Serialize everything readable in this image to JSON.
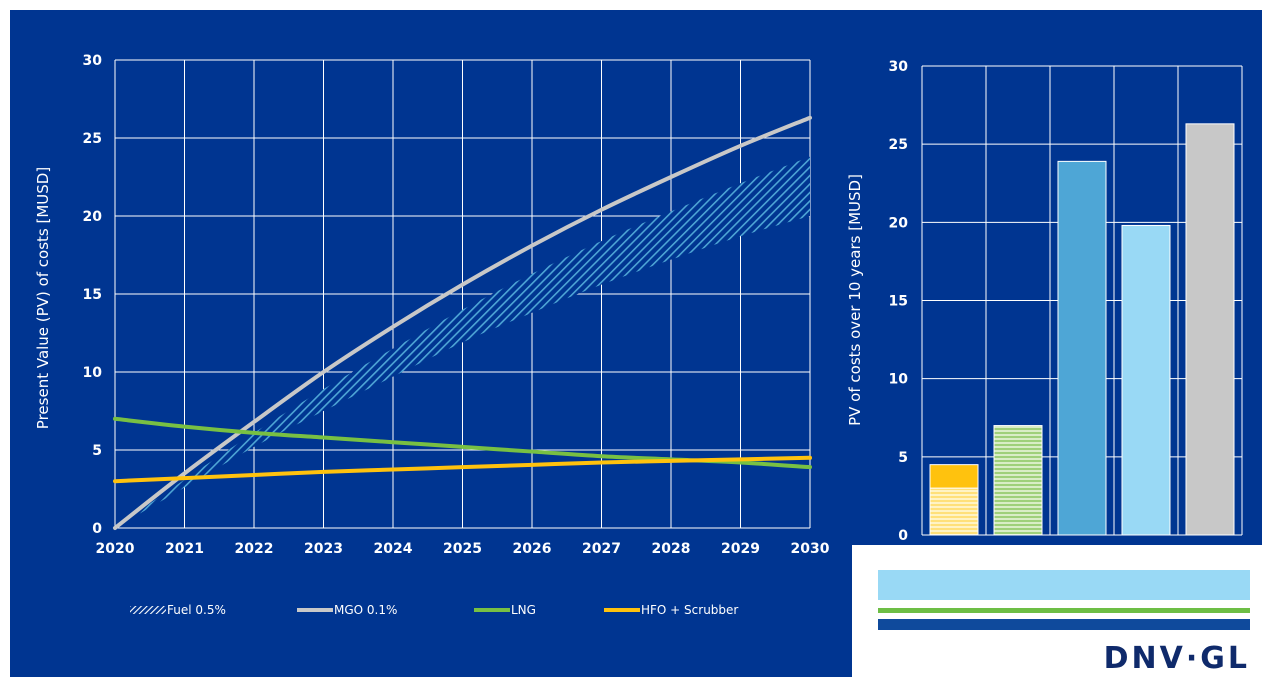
{
  "colors": {
    "background": "#003591",
    "grid": "#ffffff",
    "fuel": "#4ea6d6",
    "mgo": "#c8c8c8",
    "lng": "#78c043",
    "hfo": "#ffc20e",
    "logo_light_blue": "#99d9f5",
    "logo_green": "#6dbe45",
    "logo_dark_blue": "#0f4a9c",
    "logo_text": "#0f2a6b"
  },
  "chart_data": [
    {
      "type": "line",
      "title": "",
      "xlabel": "",
      "ylabel": "Present Value (PV) of costs [MUSD]",
      "xlim": [
        2020,
        2030
      ],
      "ylim": [
        0,
        30
      ],
      "x_ticks": [
        2020,
        2021,
        2022,
        2023,
        2024,
        2025,
        2026,
        2027,
        2028,
        2029,
        2030
      ],
      "y_ticks": [
        0,
        5,
        10,
        15,
        20,
        25,
        30
      ],
      "grid": true,
      "legend_position": "bottom",
      "x": [
        2020,
        2021,
        2022,
        2023,
        2024,
        2025,
        2026,
        2027,
        2028,
        2029,
        2030
      ],
      "series": [
        {
          "name": "Fuel 0.5%",
          "style": "hatched-band",
          "color_key": "fuel",
          "upper": [
            0,
            3.1,
            6.1,
            8.9,
            11.5,
            14.0,
            16.3,
            18.4,
            20.3,
            22.1,
            23.8
          ],
          "lower": [
            0,
            2.6,
            5.2,
            7.5,
            9.7,
            11.9,
            13.8,
            15.6,
            17.2,
            18.7,
            20.0
          ]
        },
        {
          "name": "MGO 0.1%",
          "style": "line",
          "color_key": "mgo",
          "values": [
            0,
            3.5,
            6.8,
            10.0,
            12.9,
            15.6,
            18.1,
            20.4,
            22.5,
            24.5,
            26.3
          ]
        },
        {
          "name": "LNG",
          "style": "line",
          "color_key": "lng",
          "values": [
            7.0,
            6.5,
            6.1,
            5.8,
            5.5,
            5.2,
            4.9,
            4.6,
            4.4,
            4.2,
            3.9
          ]
        },
        {
          "name": "HFO + Scrubber",
          "style": "line",
          "color_key": "hfo",
          "values": [
            3.0,
            3.2,
            3.4,
            3.6,
            3.75,
            3.9,
            4.05,
            4.2,
            4.3,
            4.4,
            4.5
          ]
        }
      ]
    },
    {
      "type": "bar",
      "title": "",
      "xlabel": "",
      "ylabel": "PV of costs over 10 years [MUSD]",
      "ylim": [
        0,
        30
      ],
      "y_ticks": [
        0,
        5,
        10,
        15,
        20,
        25,
        30
      ],
      "grid": true,
      "bars": [
        {
          "color_key": "hfo",
          "pattern": "stacked-lined",
          "lower": 3.0,
          "value": 4.5
        },
        {
          "color_key": "lng",
          "pattern": "lined",
          "value": 7.0
        },
        {
          "color_key": "fuel",
          "pattern": "solid",
          "value": 23.9
        },
        {
          "color_key": "logo_light_blue",
          "pattern": "solid",
          "value": 19.8
        },
        {
          "color_key": "mgo",
          "pattern": "solid",
          "value": 26.3
        }
      ]
    }
  ],
  "logo": {
    "text": "DNV·GL"
  }
}
